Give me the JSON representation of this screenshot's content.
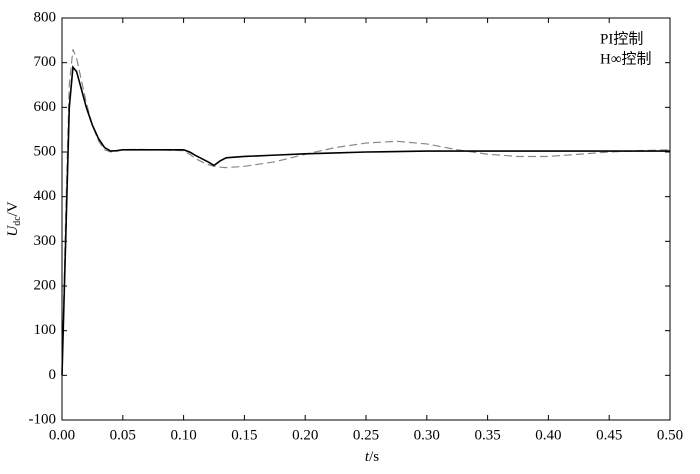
{
  "chart_data": {
    "type": "line",
    "x_label": {
      "var": "t",
      "unit": "/s"
    },
    "y_label": {
      "main": "U",
      "sub": "dc",
      "unit": "/V"
    },
    "x": [
      0,
      0.003,
      0.006,
      0.009,
      0.012,
      0.016,
      0.02,
      0.025,
      0.03,
      0.035,
      0.04,
      0.045,
      0.05,
      0.06,
      0.08,
      0.1,
      0.105,
      0.11,
      0.115,
      0.12,
      0.125,
      0.13,
      0.135,
      0.14,
      0.15,
      0.175,
      0.2,
      0.225,
      0.25,
      0.275,
      0.3,
      0.325,
      0.35,
      0.375,
      0.4,
      0.425,
      0.45,
      0.475,
      0.5
    ],
    "series": [
      {
        "name": "PI控制",
        "color": "#888888",
        "dash": true,
        "values": [
          0,
          350,
          650,
          730,
          710,
          660,
          610,
          560,
          525,
          505,
          500,
          502,
          505,
          506,
          505,
          503,
          495,
          485,
          478,
          472,
          468,
          466,
          465,
          466,
          468,
          478,
          495,
          510,
          520,
          524,
          518,
          505,
          495,
          490,
          490,
          495,
          500,
          503,
          505
        ]
      },
      {
        "name": "H∞控制",
        "color": "#000000",
        "dash": false,
        "values": [
          0,
          300,
          600,
          690,
          680,
          640,
          600,
          560,
          530,
          510,
          502,
          503,
          505,
          505,
          505,
          505,
          500,
          492,
          485,
          478,
          470,
          480,
          487,
          488,
          490,
          493,
          496,
          498,
          500,
          501,
          502,
          502,
          502,
          502,
          502,
          502,
          502,
          502,
          502
        ]
      }
    ],
    "xlim": [
      0,
      0.5
    ],
    "xticks": [
      {
        "value": 0,
        "label": "0.00"
      },
      {
        "value": 0.05,
        "label": "0.05"
      },
      {
        "value": 0.1,
        "label": "0.10"
      },
      {
        "value": 0.15,
        "label": "0.15"
      },
      {
        "value": 0.2,
        "label": "0.20"
      },
      {
        "value": 0.25,
        "label": "0.25"
      },
      {
        "value": 0.3,
        "label": "0.30"
      },
      {
        "value": 0.35,
        "label": "0.35"
      },
      {
        "value": 0.4,
        "label": "0.40"
      },
      {
        "value": 0.45,
        "label": "0.45"
      },
      {
        "value": 0.5,
        "label": "0.50"
      }
    ],
    "ylim": [
      -100,
      800
    ],
    "yticks": [
      -100,
      0,
      100,
      200,
      300,
      400,
      500,
      600,
      700,
      800
    ],
    "legend": "upper right",
    "grid": false
  }
}
